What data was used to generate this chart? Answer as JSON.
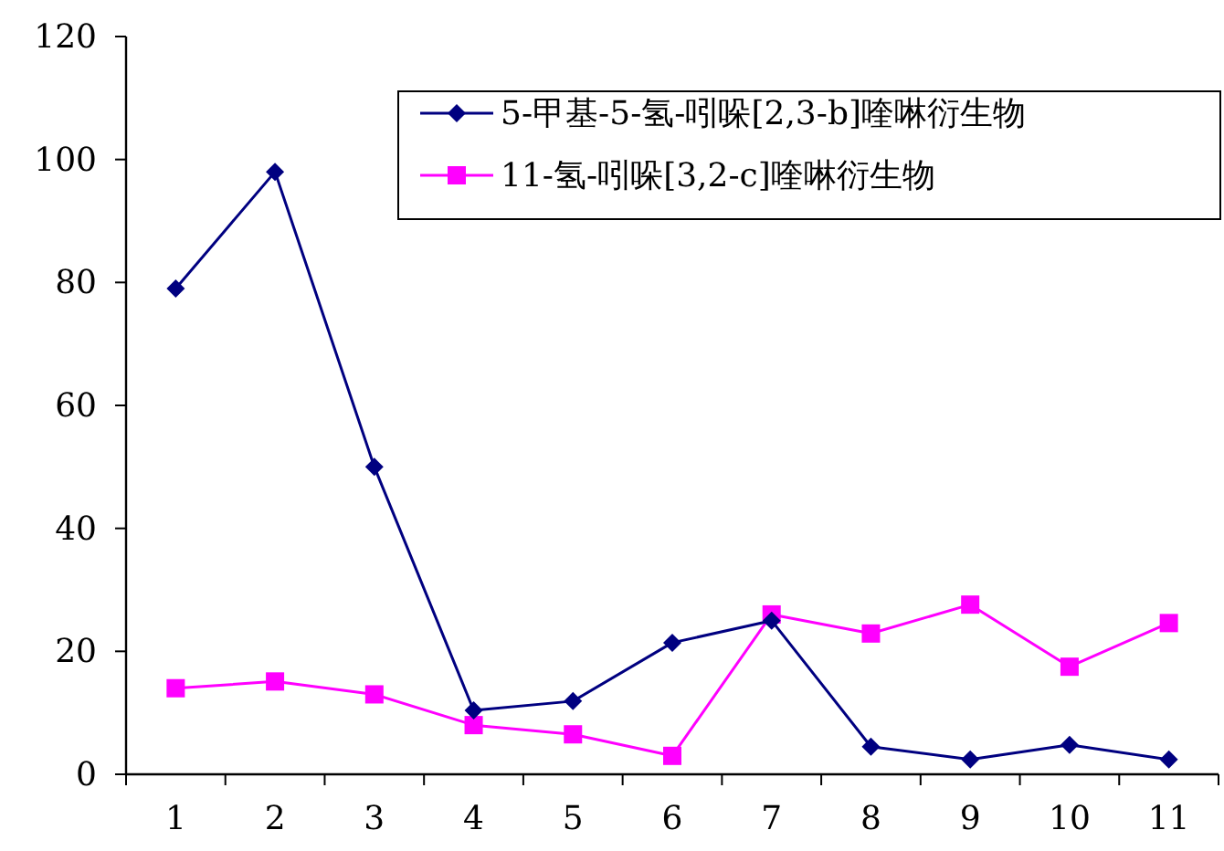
{
  "chart_data": {
    "type": "line",
    "categories": [
      "1",
      "2",
      "3",
      "4",
      "5",
      "6",
      "7",
      "8",
      "9",
      "10",
      "11"
    ],
    "series": [
      {
        "name": "5-甲基-5-氢-吲哚[2,3-b]喹啉衍生物",
        "color": "#000080",
        "marker": "diamond",
        "values": [
          79,
          98,
          50,
          10.4,
          11.9,
          21.4,
          25,
          4.5,
          2.4,
          4.8,
          2.4
        ]
      },
      {
        "name": "11-氢-吲哚[3,2-c]喹啉衍生物",
        "color": "#ff00ff",
        "marker": "square",
        "values": [
          14,
          15.1,
          13,
          8,
          6.5,
          3,
          26,
          22.9,
          27.6,
          17.5,
          24.6
        ]
      }
    ],
    "ylim": [
      0,
      120
    ],
    "yticks": [
      0,
      20,
      40,
      60,
      80,
      100,
      120
    ],
    "grid": false,
    "legend": "top right",
    "line_style": "solid"
  }
}
